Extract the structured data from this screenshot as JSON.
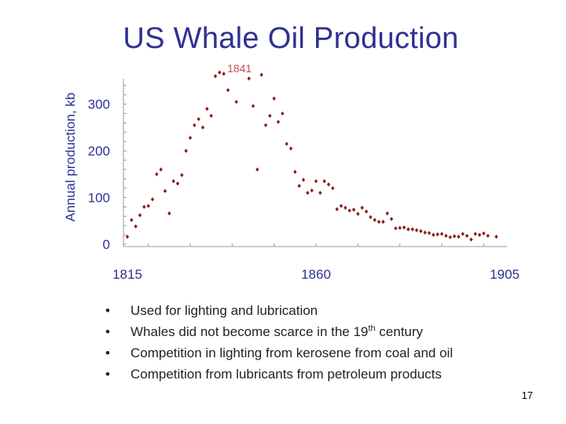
{
  "slide": {
    "title": "US Whale Oil Production",
    "page_number": "17",
    "bullets": [
      {
        "text": "Used for lighting and lubrication"
      },
      {
        "text": "Whales did not become scarce in the 19",
        "sup": "th",
        "after": " century"
      },
      {
        "text": "Competition in lighting from kerosene from coal and oil"
      },
      {
        "text": "Competition from lubricants from petroleum products"
      }
    ],
    "bullet_symbol": "•"
  },
  "chart_data": {
    "type": "scatter",
    "title": "US Whale Oil Production",
    "xlabel": "",
    "ylabel": "Annual production, kb",
    "xlim": [
      1815,
      1905
    ],
    "ylim": [
      0,
      360
    ],
    "x_ticks": [
      1815,
      1860,
      1905
    ],
    "y_ticks": [
      0,
      100,
      200,
      300
    ],
    "grid": false,
    "legend": "none",
    "annotation": {
      "text": "1841",
      "x": 1841,
      "color": "#c0504d"
    },
    "colors": {
      "marker": "#8b1a1a",
      "axis_text": "#2e3192",
      "axis_line": "#999999"
    },
    "points": [
      [
        1815,
        16
      ],
      [
        1816,
        52
      ],
      [
        1817,
        38
      ],
      [
        1818,
        62
      ],
      [
        1819,
        80
      ],
      [
        1820,
        82
      ],
      [
        1821,
        96
      ],
      [
        1822,
        150
      ],
      [
        1823,
        160
      ],
      [
        1824,
        114
      ],
      [
        1825,
        66
      ],
      [
        1826,
        135
      ],
      [
        1827,
        130
      ],
      [
        1828,
        148
      ],
      [
        1829,
        200
      ],
      [
        1830,
        228
      ],
      [
        1831,
        255
      ],
      [
        1832,
        268
      ],
      [
        1833,
        250
      ],
      [
        1834,
        290
      ],
      [
        1835,
        275
      ],
      [
        1836,
        360
      ],
      [
        1837,
        368
      ],
      [
        1838,
        365
      ],
      [
        1839,
        330
      ],
      [
        1841,
        305
      ],
      [
        1844,
        355
      ],
      [
        1845,
        296
      ],
      [
        1846,
        160
      ],
      [
        1847,
        363
      ],
      [
        1848,
        255
      ],
      [
        1849,
        275
      ],
      [
        1850,
        312
      ],
      [
        1851,
        262
      ],
      [
        1852,
        280
      ],
      [
        1853,
        215
      ],
      [
        1854,
        205
      ],
      [
        1855,
        155
      ],
      [
        1856,
        125
      ],
      [
        1857,
        138
      ],
      [
        1858,
        110
      ],
      [
        1859,
        115
      ],
      [
        1860,
        135
      ],
      [
        1861,
        110
      ],
      [
        1862,
        135
      ],
      [
        1863,
        128
      ],
      [
        1864,
        120
      ],
      [
        1865,
        75
      ],
      [
        1866,
        82
      ],
      [
        1867,
        78
      ],
      [
        1868,
        72
      ],
      [
        1869,
        74
      ],
      [
        1870,
        65
      ],
      [
        1871,
        78
      ],
      [
        1872,
        70
      ],
      [
        1873,
        58
      ],
      [
        1874,
        52
      ],
      [
        1875,
        48
      ],
      [
        1876,
        48
      ],
      [
        1877,
        66
      ],
      [
        1878,
        54
      ],
      [
        1879,
        34
      ],
      [
        1880,
        35
      ],
      [
        1881,
        36
      ],
      [
        1882,
        32
      ],
      [
        1883,
        32
      ],
      [
        1884,
        30
      ],
      [
        1885,
        28
      ],
      [
        1886,
        25
      ],
      [
        1887,
        24
      ],
      [
        1888,
        20
      ],
      [
        1889,
        21
      ],
      [
        1890,
        22
      ],
      [
        1891,
        18
      ],
      [
        1892,
        15
      ],
      [
        1893,
        17
      ],
      [
        1894,
        16
      ],
      [
        1895,
        22
      ],
      [
        1896,
        18
      ],
      [
        1897,
        10
      ],
      [
        1898,
        22
      ],
      [
        1899,
        20
      ],
      [
        1900,
        23
      ],
      [
        1901,
        18
      ],
      [
        1903,
        16
      ]
    ]
  }
}
